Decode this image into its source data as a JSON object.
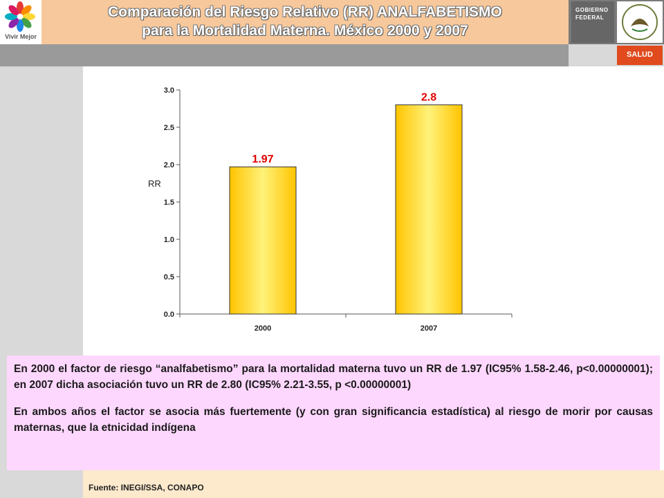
{
  "header": {
    "logo_text": "Vivir Mejor",
    "title_line1": "Comparación del Riesgo Relativo (RR) ANALFABETISMO",
    "title_line2": "para la Mortalidad Materna. México 2000 y 2007",
    "gov_line1": "GOBIERNO",
    "gov_line2": "FEDERAL",
    "salud": "SALUD"
  },
  "colors": {
    "bar_fill": "#ffd400",
    "bar_edge": "#ffe866",
    "label_color": "#e00000",
    "title_band": "#f7c89b",
    "textbox_bg": "#fdd7fd",
    "source_bg": "#fde9cc"
  },
  "chart_data": {
    "type": "bar",
    "categories": [
      "2000",
      "2007"
    ],
    "values": [
      1.97,
      2.8
    ],
    "value_labels": [
      "1.97",
      "2.8"
    ],
    "ylabel": "RR",
    "ylim": [
      0,
      3.0
    ],
    "yticks": [
      "0.0",
      "0.5",
      "1.0",
      "1.5",
      "2.0",
      "2.5",
      "3.0"
    ],
    "grid": false
  },
  "description": {
    "paragraph1": "En 2000 el factor de riesgo “analfabetismo” para la mortalidad materna tuvo un RR de 1.97 (IC95% 1.58-2.46, p<0.00000001); en 2007 dicha asociación tuvo un RR de 2.80 (IC95% 2.21-3.55, p <0.00000001)",
    "paragraph2": "En ambos años el factor se asocia más fuertemente (y con gran significancia estadística) al riesgo de morir por causas maternas, que la etnicidad indígena"
  },
  "footer": {
    "source": "Fuente: INEGI/SSA, CONAPO"
  }
}
